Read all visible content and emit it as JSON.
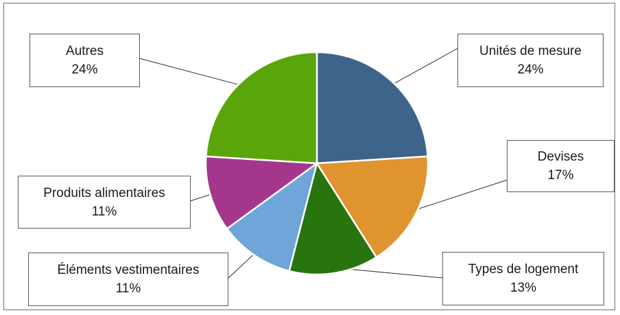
{
  "chart_data": {
    "type": "pie",
    "slices": [
      {
        "label": "Unités de mesure",
        "percent_label": "24%",
        "value": 24,
        "color": "#3d6489"
      },
      {
        "label": "Devises",
        "percent_label": "17%",
        "value": 17,
        "color": "#e0942f"
      },
      {
        "label": "Types de logement",
        "percent_label": "13%",
        "value": 13,
        "color": "#28740f"
      },
      {
        "label": "Éléments vestimentaires",
        "percent_label": "11%",
        "value": 11,
        "color": "#6fa6d9"
      },
      {
        "label": "Produits alimentaires",
        "percent_label": "11%",
        "value": 11,
        "color": "#a4378c"
      },
      {
        "label": "Autres",
        "percent_label": "24%",
        "value": 24,
        "color": "#5aa60a"
      }
    ],
    "start_angle_deg": 0,
    "direction": "clockwise",
    "legend": "none"
  }
}
